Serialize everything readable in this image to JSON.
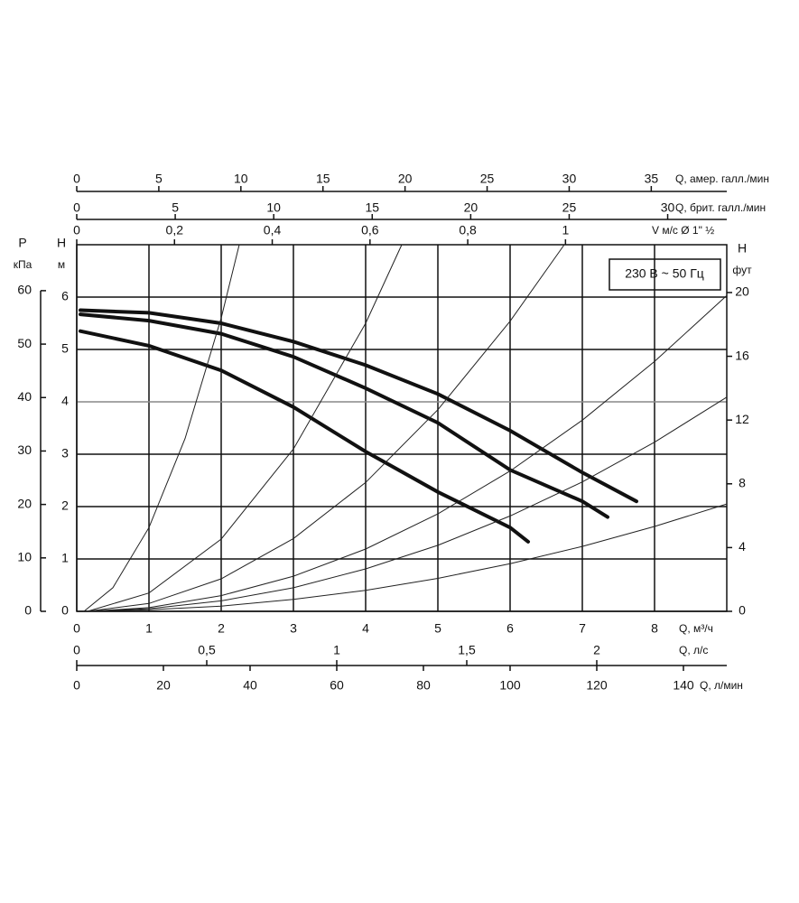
{
  "chart_data": {
    "type": "line",
    "annotation": "230 В ~ 50 Гц",
    "x_label": "Q, м³/ч",
    "xlim": [
      0,
      9
    ],
    "xticks": [
      0,
      1,
      2,
      3,
      4,
      5,
      6,
      7,
      8
    ],
    "y_label": "H",
    "y_unit": "м",
    "ylim": [
      0,
      7
    ],
    "yticks": [
      0,
      1,
      2,
      3,
      4,
      5,
      6
    ],
    "grid": true,
    "axes": [
      {
        "label": "Q, амер. галл./мин",
        "lim": [
          0,
          39.6
        ],
        "ticks": [
          0,
          5,
          10,
          15,
          20,
          25,
          30,
          35
        ]
      },
      {
        "label": "Q, брит. галл./мин",
        "lim": [
          0,
          33
        ],
        "ticks": [
          0,
          5,
          10,
          15,
          20,
          25,
          30
        ]
      },
      {
        "label": "V м/с Ø 1\" ½",
        "lim": [
          0,
          1.33
        ],
        "ticks": [
          0,
          {
            "value": 0.2,
            "label": "0,2"
          },
          {
            "value": 0.4,
            "label": "0,4"
          },
          {
            "value": 0.6,
            "label": "0,6"
          },
          {
            "value": 0.8,
            "label": "0,8"
          },
          1
        ]
      },
      {
        "label": "Q, л/с",
        "lim": [
          0,
          2.5
        ],
        "ticks": [
          0,
          {
            "value": 0.5,
            "label": "0,5"
          },
          1,
          {
            "value": 1.5,
            "label": "1,5"
          },
          2
        ]
      },
      {
        "label": "Q, л/мин",
        "lim": [
          0,
          150
        ],
        "ticks": [
          0,
          20,
          40,
          60,
          80,
          100,
          120,
          140
        ]
      },
      {
        "label": "P",
        "unit": "кПа",
        "lim": [
          0,
          68.6
        ],
        "ticks": [
          0,
          10,
          20,
          30,
          40,
          50,
          60
        ]
      },
      {
        "label": "H",
        "unit": "фут",
        "lim": [
          0,
          23
        ],
        "ticks": [
          0,
          4,
          8,
          12,
          16,
          20
        ]
      }
    ],
    "series": [
      {
        "color": "#111111",
        "width": 4,
        "x": [
          0.05,
          1,
          2,
          3,
          4,
          5,
          6,
          7,
          7.75
        ],
        "values": [
          5.75,
          5.7,
          5.5,
          5.15,
          4.7,
          4.15,
          3.45,
          2.65,
          2.1
        ]
      },
      {
        "color": "#111111",
        "width": 4,
        "x": [
          0.05,
          1,
          2,
          3,
          4,
          5,
          6,
          7,
          7.35
        ],
        "values": [
          5.67,
          5.55,
          5.3,
          4.86,
          4.26,
          3.6,
          2.7,
          2.1,
          1.8
        ]
      },
      {
        "color": "#111111",
        "width": 4,
        "x": [
          0.05,
          1,
          2,
          3,
          4,
          5,
          6,
          6.25
        ],
        "values": [
          5.35,
          5.07,
          4.6,
          3.9,
          3.05,
          2.28,
          1.6,
          1.33
        ]
      },
      {
        "color": "#222222",
        "width": 1,
        "x": [
          0.1,
          0.5,
          1,
          1.5,
          2,
          2.25
        ],
        "values": [
          0,
          0.45,
          1.6,
          3.3,
          5.6,
          7
        ]
      },
      {
        "color": "#222222",
        "width": 1,
        "x": [
          0.15,
          1,
          2,
          3,
          4,
          4.5
        ],
        "values": [
          0,
          0.35,
          1.38,
          3.1,
          5.5,
          7
        ]
      },
      {
        "color": "#222222",
        "width": 1,
        "x": [
          0.15,
          1,
          2,
          3,
          4,
          5,
          6,
          6.75
        ],
        "values": [
          0,
          0.15,
          0.62,
          1.39,
          2.46,
          3.85,
          5.54,
          7
        ]
      },
      {
        "color": "#222222",
        "width": 1,
        "x": [
          0.15,
          1,
          2,
          3,
          4,
          5,
          6,
          7,
          8,
          9
        ],
        "values": [
          0,
          0.07,
          0.3,
          0.67,
          1.19,
          1.86,
          2.68,
          3.65,
          4.77,
          6.03
        ]
      },
      {
        "color": "#222222",
        "width": 1,
        "x": [
          0.15,
          1,
          2,
          3,
          4,
          5,
          6,
          7,
          8,
          9
        ],
        "values": [
          0,
          0.05,
          0.2,
          0.45,
          0.81,
          1.26,
          1.82,
          2.47,
          3.23,
          4.09
        ]
      },
      {
        "color": "#222222",
        "width": 1,
        "x": [
          0.15,
          1,
          2,
          3,
          4,
          5,
          6,
          7,
          8,
          9
        ],
        "values": [
          0,
          0.03,
          0.1,
          0.23,
          0.4,
          0.63,
          0.91,
          1.24,
          1.62,
          2.05
        ]
      }
    ]
  }
}
